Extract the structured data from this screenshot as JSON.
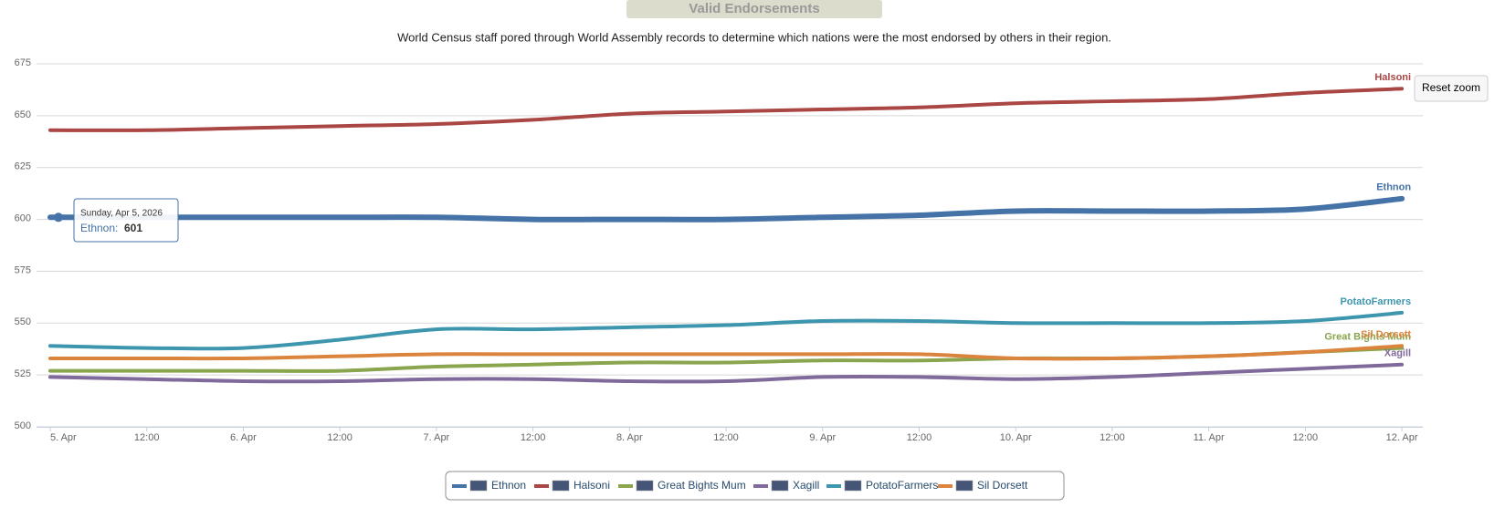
{
  "chart_data": {
    "type": "line",
    "title": "Valid Endorsements",
    "subtitle": "World Census staff pored through World Assembly records to determine which nations were the most endorsed by others in their region.",
    "reset_zoom_label": "Reset zoom",
    "x": [
      "2026-04-05T00:00",
      "2026-04-05T12:00",
      "2026-04-06T00:00",
      "2026-04-06T12:00",
      "2026-04-07T00:00",
      "2026-04-07T12:00",
      "2026-04-08T00:00",
      "2026-04-08T12:00",
      "2026-04-09T00:00",
      "2026-04-09T12:00",
      "2026-04-10T00:00",
      "2026-04-10T12:00",
      "2026-04-11T00:00",
      "2026-04-11T12:00",
      "2026-04-12T00:00"
    ],
    "xlim": [
      "2026-04-04T22:18",
      "2026-04-12T02:36"
    ],
    "xticks": [
      {
        "value": "2026-04-05T00:00",
        "label": "5. Apr"
      },
      {
        "value": "2026-04-05T12:00",
        "label": "12:00"
      },
      {
        "value": "2026-04-06T00:00",
        "label": "6. Apr"
      },
      {
        "value": "2026-04-06T12:00",
        "label": "12:00"
      },
      {
        "value": "2026-04-07T00:00",
        "label": "7. Apr"
      },
      {
        "value": "2026-04-07T12:00",
        "label": "12:00"
      },
      {
        "value": "2026-04-08T00:00",
        "label": "8. Apr"
      },
      {
        "value": "2026-04-08T12:00",
        "label": "12:00"
      },
      {
        "value": "2026-04-09T00:00",
        "label": "9. Apr"
      },
      {
        "value": "2026-04-09T12:00",
        "label": "12:00"
      },
      {
        "value": "2026-04-10T00:00",
        "label": "10. Apr"
      },
      {
        "value": "2026-04-10T12:00",
        "label": "12:00"
      },
      {
        "value": "2026-04-11T00:00",
        "label": "11. Apr"
      },
      {
        "value": "2026-04-11T12:00",
        "label": "12:00"
      },
      {
        "value": "2026-04-12T00:00",
        "label": "12. Apr"
      }
    ],
    "ylim": [
      500,
      675
    ],
    "yticks": [
      500,
      525,
      550,
      575,
      600,
      625,
      650,
      675
    ],
    "grid": true,
    "legend": "bottom",
    "series": [
      {
        "name": "Ethnon",
        "color": "#4572a7",
        "values": [
          601,
          601,
          601,
          601,
          601,
          600,
          600,
          600,
          601,
          602,
          604,
          604,
          604,
          605,
          610
        ]
      },
      {
        "name": "Halsoni",
        "color": "#aa4643",
        "values": [
          643,
          643,
          644,
          645,
          646,
          648,
          651,
          652,
          653,
          654,
          656,
          657,
          658,
          661,
          663
        ]
      },
      {
        "name": "Great Bights Mum",
        "color": "#89a54e",
        "values": [
          527,
          527,
          527,
          527,
          529,
          530,
          531,
          531,
          532,
          532,
          533,
          533,
          534,
          536,
          538
        ]
      },
      {
        "name": "Xagill",
        "color": "#80699b",
        "values": [
          524,
          523,
          522,
          522,
          523,
          523,
          522,
          522,
          524,
          524,
          523,
          524,
          526,
          528,
          530
        ]
      },
      {
        "name": "PotatoFarmers",
        "color": "#3d96ae",
        "values": [
          539,
          538,
          538,
          542,
          547,
          547,
          548,
          549,
          551,
          551,
          550,
          550,
          550,
          551,
          555
        ]
      },
      {
        "name": "Sil Dorsett",
        "color": "#db843d",
        "values": [
          533,
          533,
          533,
          534,
          535,
          535,
          535,
          535,
          535,
          535,
          533,
          533,
          534,
          536,
          539
        ]
      }
    ],
    "tooltip": {
      "header": "Sunday, Apr 5, 2026",
      "series": "Ethnon:",
      "value": 601
    }
  }
}
